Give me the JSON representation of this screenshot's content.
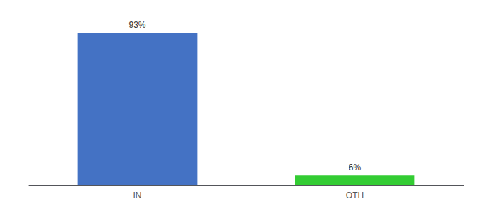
{
  "chart_data": {
    "type": "bar",
    "categories": [
      "IN",
      "OTH"
    ],
    "values": [
      93,
      6
    ],
    "value_labels": [
      "93%",
      "6%"
    ],
    "colors": [
      "#4472c4",
      "#33cc33"
    ],
    "ylim": [
      0,
      100
    ],
    "grid": false,
    "data_labels": true,
    "tick_labels": "x"
  }
}
